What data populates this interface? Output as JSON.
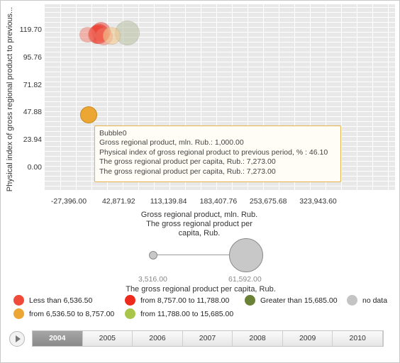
{
  "chart_data": {
    "type": "bubble",
    "y_ticks": [
      "119.70",
      "95.76",
      "71.82",
      "47.88",
      "23.94",
      "0.00"
    ],
    "x_ticks": [
      "-27,396.00",
      "42,871.92",
      "113,139.84",
      "183,407.76",
      "253,675.68",
      "323,943.60"
    ],
    "ylabel": "Physical index of gross regional product to previous...",
    "xlabel_lines": [
      "Gross regional product, mln. Rub.",
      "The gross regional product per",
      "capita, Rub."
    ],
    "legend": [
      {
        "label": "Less than 6,536.50",
        "color": "#f04b3a"
      },
      {
        "label": "from 8,757.00 to 11,788.00",
        "color": "#ee2a1c"
      },
      {
        "label": "Greater than 15,685.00",
        "color": "#6a8236"
      },
      {
        "label": "no data",
        "color": "#c4c4c4"
      },
      {
        "label": "from 6,536.50 to 8,757.00",
        "color": "#eba634"
      },
      {
        "label": "from 11,788.00 to 15,685.00",
        "color": "#a9c64a"
      }
    ],
    "bubbles": [
      {
        "x": 55000,
        "y": 117.5,
        "size": 20000,
        "color": "#b7bfa0",
        "opacity": 0.55
      },
      {
        "x": 13000,
        "y": 116.0,
        "size": 9300,
        "color": "#ef3b2c",
        "opacity": 0.45
      },
      {
        "x": 18000,
        "y": 118.5,
        "size": 10500,
        "color": "#ef3b2c",
        "opacity": 0.5
      },
      {
        "x": 15000,
        "y": 116.5,
        "size": 11200,
        "color": "#ee2a1c",
        "opacity": 0.55
      },
      {
        "x": 22000,
        "y": 114.5,
        "size": 8800,
        "color": "#f47c6c",
        "opacity": 0.5
      },
      {
        "x": 33000,
        "y": 115.0,
        "size": 7600,
        "color": "#f3c98f",
        "opacity": 0.6
      },
      {
        "x": -1000,
        "y": 116.0,
        "size": 6000,
        "color": "#f47c6c",
        "opacity": 0.5
      },
      {
        "x": 1000,
        "y": 46.1,
        "size": 7273,
        "color": "#eba634",
        "opacity": 1.0
      }
    ]
  },
  "tooltip": {
    "title": "Bubble0",
    "line1": "Gross regional product, mln. Rub.: 1,000.00",
    "line2": "Physical index of gross regional product to previous period, % : 46.10",
    "line3": "The gross regional product per capita, Rub.: 7,273.00",
    "line4": "The gross regional product per capita, Rub.: 7,273.00"
  },
  "size_legend": {
    "min_label": "3,516.00",
    "max_label": "61,592.00",
    "title": "The gross regional product per capita, Rub."
  },
  "timeline": {
    "years": [
      "2004",
      "2005",
      "2006",
      "2007",
      "2008",
      "2009",
      "2010"
    ],
    "active": "2004"
  }
}
